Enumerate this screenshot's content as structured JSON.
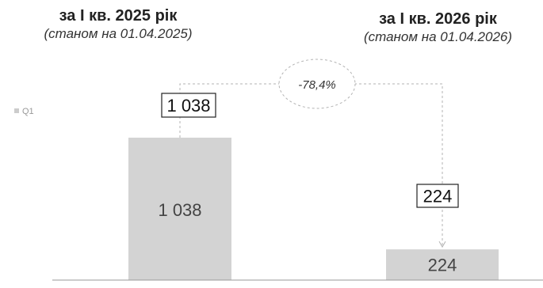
{
  "periods": [
    {
      "title": "за І кв. 2025 рік",
      "subtitle": "(станом на 01.04.2025)"
    },
    {
      "title": "за І кв. 2026 рік",
      "subtitle": "(станом на 01.04.2026)"
    }
  ],
  "change_label": "-78,4%",
  "colors": {
    "bar": "#d3d3d3",
    "axis": "#999999",
    "connector": "#b3b3b3",
    "legend_swatch": "#cccccc"
  },
  "chart_data": {
    "type": "bar",
    "categories": [
      "за І кв. 2025 рік",
      "за І кв. 2026 рік"
    ],
    "series": [
      {
        "name": "Q1",
        "values": [
          1038,
          224
        ]
      }
    ],
    "value_labels": [
      "1 038",
      "224"
    ],
    "callout_labels": [
      "1 038",
      "224"
    ],
    "legend": {
      "position": "left",
      "entries": [
        "Q1"
      ]
    },
    "ylim": [
      0,
      1250
    ],
    "grid": false
  }
}
